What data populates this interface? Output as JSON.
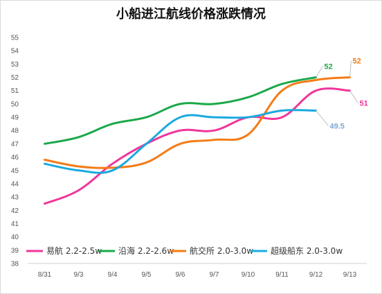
{
  "chart_data": {
    "type": "line",
    "title": "小船进江航线价格涨跌情况",
    "xlabel": "",
    "ylabel": "",
    "categories": [
      "8/31",
      "9/3",
      "9/4",
      "9/5",
      "9/6",
      "9/7",
      "9/10",
      "9/11",
      "9/12",
      "9/13"
    ],
    "ylim": [
      38,
      55
    ],
    "yticks": [
      38,
      39,
      40,
      41,
      42,
      43,
      44,
      45,
      46,
      47,
      48,
      49,
      50,
      51,
      52,
      53,
      54,
      55
    ],
    "grid": false,
    "legend_position": "bottom",
    "series": [
      {
        "name": "易航 2.2-2.5w",
        "color": "#f0359a",
        "values": [
          42.5,
          43.5,
          45.5,
          47,
          48,
          48,
          49,
          49,
          51,
          51
        ],
        "end_label": "51"
      },
      {
        "name": "沿海 2.2-2.6w",
        "color": "#1aa84a",
        "values": [
          47,
          47.5,
          48.5,
          49,
          50,
          50,
          50.5,
          51.5,
          52,
          null
        ],
        "end_label": "52"
      },
      {
        "name": "航交所 2.0-3.0w",
        "color": "#f47b16",
        "values": [
          45.8,
          45.3,
          45.2,
          45.6,
          47,
          47.3,
          47.7,
          51,
          51.8,
          52
        ],
        "end_label": "52"
      },
      {
        "name": "超级船东 2.0-3.0w",
        "color": "#1aa9e0",
        "values": [
          45.5,
          45,
          45,
          47,
          49,
          49,
          49,
          49.5,
          49.5,
          null
        ],
        "end_label": "49.5"
      }
    ],
    "end_label_colors": [
      "#f0359a",
      "#1aa84a",
      "#f47b16",
      "#7aa6d6"
    ]
  }
}
